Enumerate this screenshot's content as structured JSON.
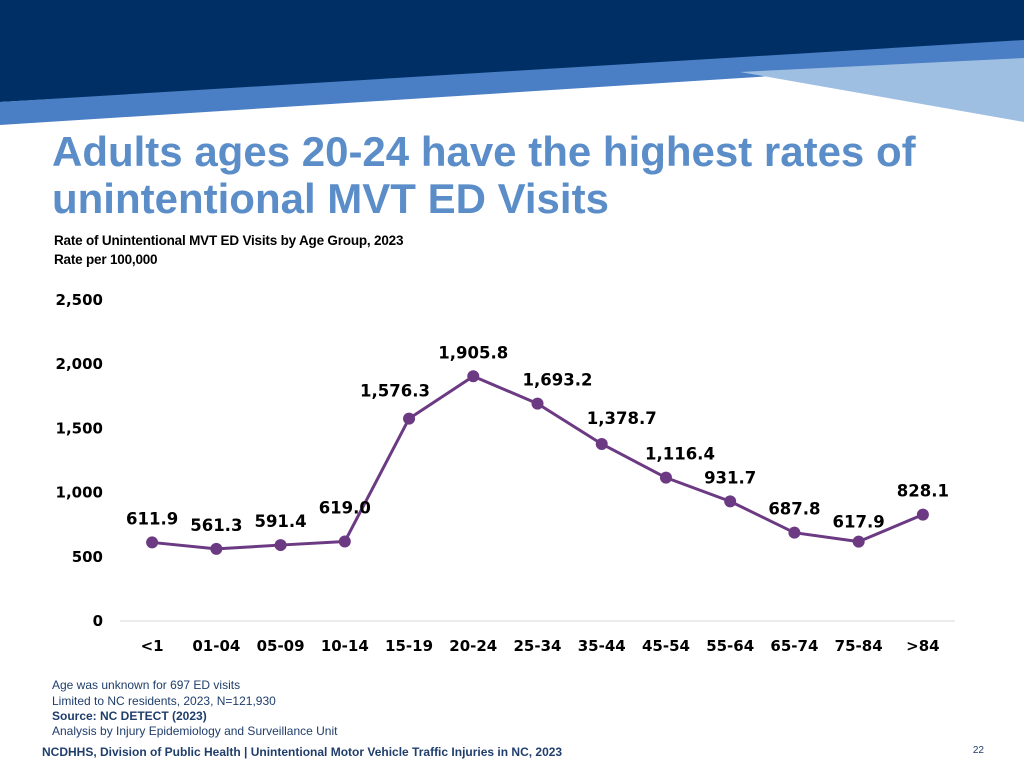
{
  "slide": {
    "headline": "Adults ages 20-24 have the highest rates of unintentional MVT ED Visits",
    "chart_title": "Rate of Unintentional MVT ED Visits by Age Group, 2023",
    "chart_subtitle": "Rate per 100,000",
    "notes": [
      "Age was unknown for 697 ED visits",
      "Limited to NC residents, 2023, N=121,930",
      "Source: NC DETECT (2023)",
      "Analysis by Injury Epidemiology and Surveillance Unit"
    ],
    "footer": "NCDHHS, Division of Public Health | Unintentional Motor Vehicle Traffic Injuries in NC, 2023",
    "page_number": "22"
  },
  "colors": {
    "banner_dark": "#002f66",
    "banner_mid": "#4a7fc5",
    "banner_light": "#9fbfe2",
    "headline": "#5b8dc8",
    "series_line": "#6b3a83",
    "series_marker": "#6b3a83",
    "axis_line": "#d9d9d9"
  },
  "chart_data": {
    "type": "line",
    "title": "Rate of Unintentional MVT ED Visits by Age Group, 2023",
    "ylabel": "Rate per 100,000",
    "xlabel": "",
    "categories": [
      "<1",
      "01-04",
      "05-09",
      "10-14",
      "15-19",
      "20-24",
      "25-34",
      "35-44",
      "45-54",
      "55-64",
      "65-74",
      "75-84",
      ">84"
    ],
    "series": [
      {
        "values": [
          611.9,
          561.3,
          591.4,
          619.0,
          1576.3,
          1905.8,
          1693.2,
          1378.7,
          1116.4,
          931.7,
          687.8,
          617.9,
          828.1
        ],
        "labels": [
          "611.9",
          "561.3",
          "591.4",
          "619.0",
          "1,576.3",
          "1,905.8",
          "1,693.2",
          "1,378.7",
          "1,116.4",
          "931.7",
          "687.8",
          "617.9",
          "828.1"
        ]
      }
    ],
    "ylim": [
      0,
      2500
    ],
    "yticks": [
      0,
      500,
      1000,
      1500,
      2000,
      2500
    ],
    "ytick_labels": [
      "0",
      "500",
      "1,000",
      "1,500",
      "2,000",
      "2,500"
    ],
    "grid": false,
    "legend": "none"
  }
}
